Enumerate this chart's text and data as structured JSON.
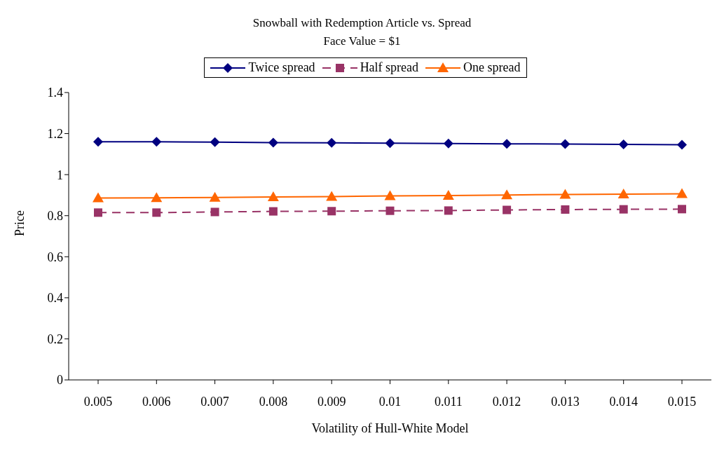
{
  "chart_data": {
    "type": "line",
    "title": "Snowball with Redemption Article vs. Spread",
    "subtitle": "Face Value = $1",
    "xlabel": "Volatility of Hull-White Model",
    "ylabel": "Price",
    "categories": [
      "0.005",
      "0.006",
      "0.007",
      "0.008",
      "0.009",
      "0.01",
      "0.011",
      "0.012",
      "0.013",
      "0.014",
      "0.015"
    ],
    "series": [
      {
        "name": "Twice spread",
        "color": "#000080",
        "marker": "diamond",
        "line_style": "solid",
        "values": [
          1.16,
          1.16,
          1.158,
          1.156,
          1.155,
          1.153,
          1.152,
          1.15,
          1.149,
          1.147,
          1.146
        ]
      },
      {
        "name": "Half spread",
        "color": "#993366",
        "marker": "square",
        "line_style": "dashed",
        "values": [
          0.815,
          0.815,
          0.818,
          0.821,
          0.822,
          0.824,
          0.825,
          0.828,
          0.83,
          0.831,
          0.832
        ]
      },
      {
        "name": "One spread",
        "color": "#ff6600",
        "marker": "triangle",
        "line_style": "solid",
        "values": [
          0.886,
          0.887,
          0.889,
          0.891,
          0.893,
          0.896,
          0.898,
          0.901,
          0.903,
          0.905,
          0.907
        ]
      }
    ],
    "ylim": [
      0,
      1.4
    ],
    "yticks": [
      0,
      0.2,
      0.4,
      0.6,
      0.8,
      1,
      1.2,
      1.4
    ],
    "grid": false,
    "legend": "top"
  }
}
